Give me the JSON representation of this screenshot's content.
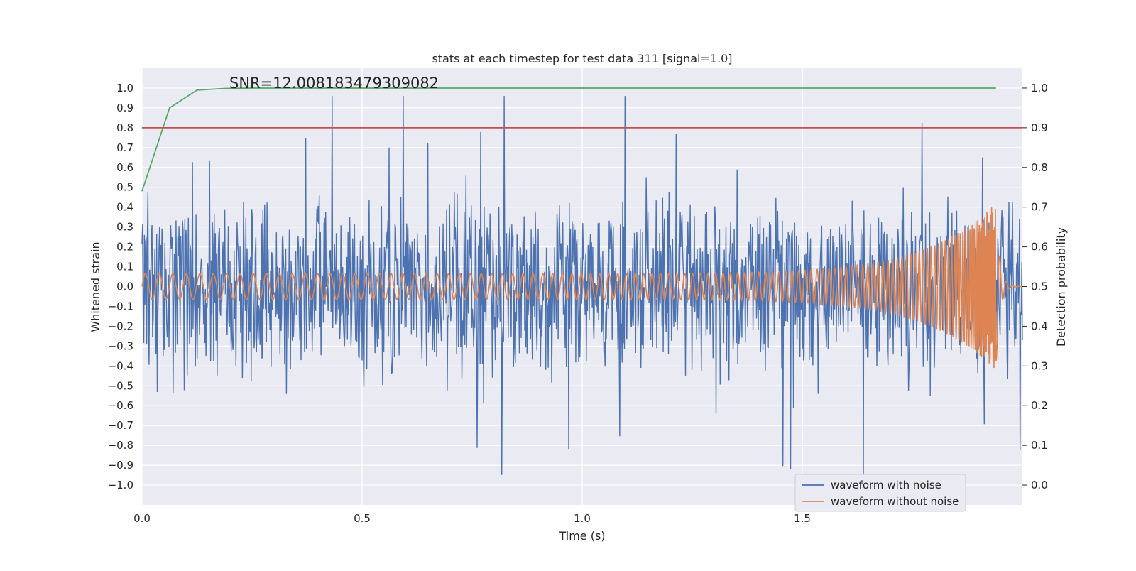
{
  "chart_data": {
    "type": "line",
    "title": "stats at each timestep for test data 311 [signal=1.0]",
    "annotation": "SNR=12.008183479309082",
    "xlabel": "Time (s)",
    "ylabel_left": "Whitened strain",
    "ylabel_right": "Detection probability",
    "xlim": [
      0.0,
      2.0
    ],
    "ylim_left": [
      -1.1,
      1.1
    ],
    "ylim_right": [
      -0.05,
      1.05
    ],
    "x_ticks": [
      "0.0",
      "0.5",
      "1.0",
      "1.5"
    ],
    "x_tick_values": [
      0.0,
      0.5,
      1.0,
      1.5
    ],
    "y_left_ticks": [
      "1.0",
      "0.9",
      "0.8",
      "0.7",
      "0.6",
      "0.5",
      "0.4",
      "0.3",
      "0.2",
      "0.1",
      "0.0",
      "−0.1",
      "−0.2",
      "−0.3",
      "−0.4",
      "−0.5",
      "−0.6",
      "−0.7",
      "−0.8",
      "−0.9",
      "−1.0"
    ],
    "y_left_tick_values": [
      1.0,
      0.9,
      0.8,
      0.7,
      0.6,
      0.5,
      0.4,
      0.3,
      0.2,
      0.1,
      0.0,
      -0.1,
      -0.2,
      -0.3,
      -0.4,
      -0.5,
      -0.6,
      -0.7,
      -0.8,
      -0.9,
      -1.0
    ],
    "y_right_ticks": [
      "1.0",
      "0.9",
      "0.8",
      "0.7",
      "0.6",
      "0.5",
      "0.4",
      "0.3",
      "0.2",
      "0.1",
      "0.0"
    ],
    "y_right_tick_values": [
      1.0,
      0.9,
      0.8,
      0.7,
      0.6,
      0.5,
      0.4,
      0.3,
      0.2,
      0.1,
      0.0
    ],
    "grid": true,
    "legend_position": "bottom-right",
    "series": [
      {
        "name": "waveform with noise",
        "color": "#4c72b0",
        "axis": "left",
        "kind": "noise",
        "amplitude_range": [
          -0.97,
          0.96
        ]
      },
      {
        "name": "waveform without noise",
        "color": "#dd8452",
        "axis": "left",
        "kind": "chirp",
        "amplitude_start": 0.065,
        "amplitude_peak": 0.42,
        "merger_time": 1.94
      },
      {
        "axis": "right",
        "color": "#55a868",
        "x": [
          0.0,
          0.0625,
          0.125,
          0.1875,
          0.25,
          0.5,
          1.0,
          1.5,
          1.94
        ],
        "y": [
          0.74,
          0.95,
          0.995,
          0.999,
          1.0,
          1.0,
          1.0,
          1.0,
          1.0
        ]
      },
      {
        "axis": "right",
        "color": "#c44e52",
        "kind": "hline",
        "y": 0.9
      }
    ]
  }
}
